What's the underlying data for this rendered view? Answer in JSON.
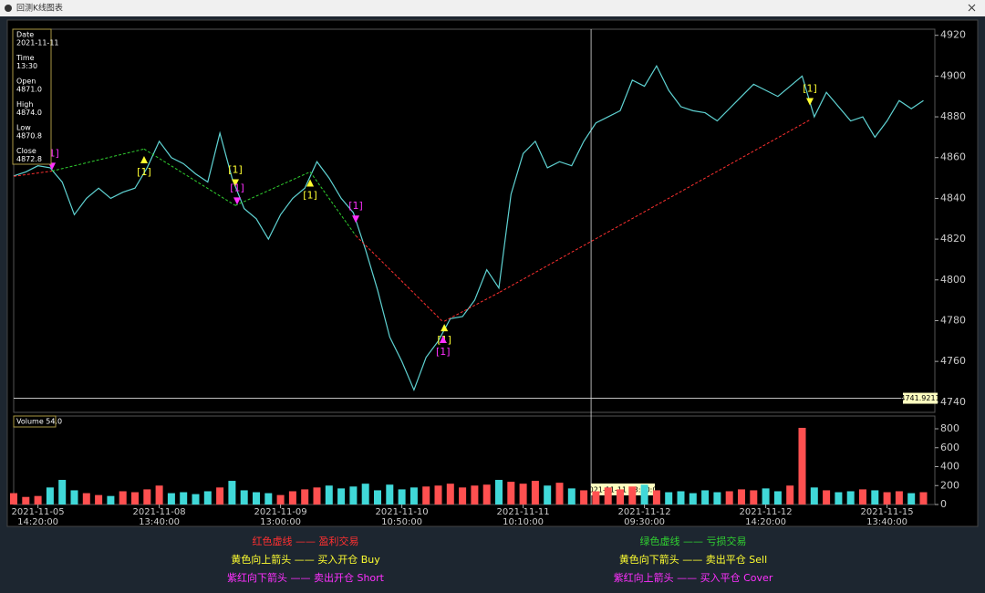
{
  "window_title": "回测K线图表",
  "info_panel": [
    {
      "label": "Date",
      "value": "2021-11-11"
    },
    {
      "label": "Time",
      "value": "13:30"
    },
    {
      "label": "Open",
      "value": "4871.0"
    },
    {
      "label": "High",
      "value": "4874.0"
    },
    {
      "label": "Low",
      "value": "4870.8"
    },
    {
      "label": "Close",
      "value": "4872.8"
    }
  ],
  "legend": [
    {
      "text": "红色虚线 —— 盈利交易",
      "color": "#ff3030"
    },
    {
      "text": "绿色虚线 —— 亏损交易",
      "color": "#30d030"
    },
    {
      "text": "黄色向上箭头 —— 买入开仓 Buy",
      "color": "#ffff30"
    },
    {
      "text": "黄色向下箭头 —— 卖出平仓 Sell",
      "color": "#ffff30"
    },
    {
      "text": "紫红向下箭头 —— 卖出开仓 Short",
      "color": "#ff30ff"
    },
    {
      "text": "紫红向上箭头 —— 买入平仓 Cover",
      "color": "#ff30ff"
    }
  ],
  "chart_data": [
    {
      "type": "line",
      "color": "#5fd3d3",
      "categories": [
        null,
        null,
        "2021-11-05 14:20:00",
        null,
        null,
        null,
        null,
        null,
        null,
        null,
        null,
        null,
        "2021-11-08 13:40:00",
        null,
        null,
        null,
        null,
        null,
        null,
        null,
        null,
        null,
        "2021-11-09 13:00:00",
        null,
        null,
        null,
        null,
        null,
        null,
        null,
        null,
        null,
        "2021-11-10 10:50:00",
        null,
        null,
        null,
        null,
        null,
        null,
        null,
        null,
        null,
        "2021-11-11 10:10:00",
        null,
        null,
        null,
        null,
        null,
        null,
        null,
        null,
        null,
        "2021-11-12 09:30:00",
        null,
        null,
        null,
        null,
        null,
        null,
        null,
        null,
        null,
        "2021-11-12 14:20:00",
        null,
        null,
        null,
        null,
        null,
        null,
        null,
        null,
        null,
        "2021-11-15 13:40:00",
        null,
        null,
        null
      ],
      "values": [
        4851,
        4853,
        4856,
        4855,
        4848,
        4832,
        4840,
        4845,
        4840,
        4843,
        4845,
        4855,
        4868,
        4860,
        4857,
        4852,
        4848,
        4872,
        4850,
        4835,
        4830,
        4820,
        4832,
        4840,
        4845,
        4858,
        4850,
        4840,
        4833,
        4815,
        4795,
        4772,
        4760,
        4746,
        4762,
        4770,
        4781,
        4782,
        4790,
        4805,
        4796,
        4842,
        4862,
        4868,
        4855,
        4858,
        4856,
        4868,
        4877,
        4880,
        4883,
        4898,
        4895,
        4905,
        4893,
        4885,
        4883,
        4882,
        4878,
        4884,
        4890,
        4896,
        4893,
        4890,
        4895,
        4900,
        4880,
        4892,
        4885,
        4878,
        4880,
        4870,
        4878,
        4888,
        4884,
        4888
      ],
      "ylim": [
        4735,
        4923
      ],
      "yticks": [
        4740,
        4760,
        4780,
        4800,
        4820,
        4840,
        4860,
        4880,
        4900,
        4920
      ],
      "trades": [
        {
          "x1": 0,
          "y1": 4850.8,
          "x2": 3.16,
          "y2": 4853.4,
          "color": "#ff3030"
        },
        {
          "x1": 3.16,
          "y1": 4853.4,
          "x2": 10.75,
          "y2": 4864.2,
          "color": "#30d030"
        },
        {
          "x1": 10.75,
          "y1": 4864.2,
          "x2": 18.27,
          "y2": 4836.5,
          "color": "#30d030"
        },
        {
          "x1": 18.27,
          "y1": 4836.5,
          "x2": 24.44,
          "y2": 4853,
          "color": "#30d030"
        },
        {
          "x1": 24.44,
          "y1": 4853,
          "x2": 28.2,
          "y2": 4821.7,
          "color": "#30d030"
        },
        {
          "x1": 28.2,
          "y1": 4821.7,
          "x2": 35.34,
          "y2": 4779.7,
          "color": "#ff3030"
        },
        {
          "x1": 35.5,
          "y1": 4779.7,
          "x2": 40.08,
          "y2": 4794,
          "color": "#ff3030"
        },
        {
          "x1": 40.08,
          "y1": 4794,
          "x2": 65.64,
          "y2": 4878.5,
          "color": "#ff3030"
        }
      ],
      "markers": [
        {
          "x": 3.16,
          "price": 4855.7,
          "kind": "short",
          "label": "[1]"
        },
        {
          "x": 10.75,
          "price": 4859,
          "kind": "buy",
          "label": "[1]"
        },
        {
          "x": 18.27,
          "price": 4847.6,
          "kind": "sell",
          "label": "[1]"
        },
        {
          "x": 18.42,
          "price": 4838.7,
          "kind": "short",
          "label": "[1]"
        },
        {
          "x": 24.44,
          "price": 4847.6,
          "kind": "buy",
          "label": "[1]"
        },
        {
          "x": 28.2,
          "price": 4829.8,
          "kind": "short",
          "label": "[1]"
        },
        {
          "x": 35.5,
          "price": 4776.6,
          "kind": "buy",
          "label": "[1]"
        },
        {
          "x": 35.4,
          "price": 4770.8,
          "kind": "cover",
          "label": "[1]"
        },
        {
          "x": 65.64,
          "price": 4887.4,
          "kind": "sell",
          "label": "[1]"
        }
      ],
      "crosshair": {
        "x": 47.6,
        "price": 4741.9211,
        "time_label": "2021-11-11 13:30:00"
      }
    },
    {
      "type": "bar",
      "label": "Volume 54.0",
      "up_color": "#ff5050",
      "down_color": "#40d8d8",
      "values": [
        120,
        80,
        90,
        180,
        260,
        150,
        120,
        100,
        90,
        140,
        130,
        160,
        200,
        120,
        130,
        110,
        140,
        180,
        250,
        150,
        130,
        120,
        100,
        140,
        160,
        180,
        200,
        170,
        190,
        220,
        150,
        210,
        160,
        180,
        190,
        200,
        220,
        180,
        200,
        210,
        260,
        240,
        220,
        250,
        200,
        230,
        170,
        150,
        140,
        180,
        160,
        190,
        210,
        150,
        130,
        140,
        120,
        150,
        130,
        140,
        160,
        150,
        170,
        140,
        200,
        810,
        180,
        150,
        130,
        140,
        160,
        150,
        130,
        140,
        120,
        130
      ],
      "ylim": [
        0,
        935
      ],
      "yticks": [
        0,
        200,
        400,
        600,
        800
      ]
    }
  ]
}
